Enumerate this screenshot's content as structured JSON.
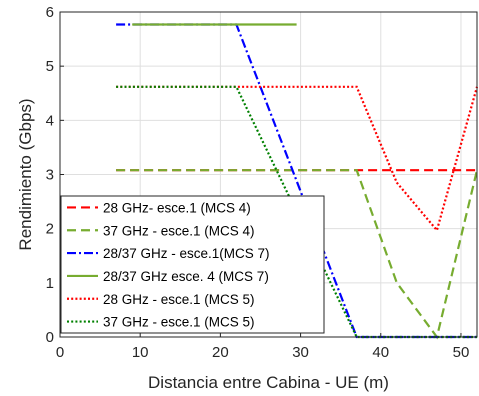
{
  "chart_data": {
    "type": "line",
    "title": "",
    "xlabel": "Distancia entre Cabina - UE (m)",
    "ylabel": "Rendimiento (Gbps)",
    "xlim": [
      0,
      52
    ],
    "ylim": [
      0,
      6
    ],
    "xticks": [
      0,
      10,
      20,
      30,
      40,
      50
    ],
    "yticks": [
      0,
      1,
      2,
      3,
      4,
      5,
      6
    ],
    "grid": true,
    "legend_position": "bottom-left",
    "series": [
      {
        "name": "28 GHz- esce.1 (MCS 4)",
        "color": "#ff0000",
        "dash": "dashed",
        "points": [
          [
            7,
            3.08
          ],
          [
            52,
            3.08
          ]
        ]
      },
      {
        "name": "37 GHz - esce.1 (MCS 4)",
        "color": "#77ac30",
        "dash": "dashed",
        "points": [
          [
            7,
            3.08
          ],
          [
            37,
            3.08
          ],
          [
            42,
            1.0
          ],
          [
            47,
            0.0
          ],
          [
            52,
            3.08
          ]
        ]
      },
      {
        "name": "28/37 GHz - esce.1(MCS 7)",
        "color": "#0000ff",
        "dash": "dashdot",
        "points": [
          [
            7,
            5.77
          ],
          [
            22,
            5.77
          ],
          [
            37,
            0.0
          ],
          [
            52,
            0.0
          ]
        ]
      },
      {
        "name": "28/37 GHz esce. 4 (MCS 7)",
        "color": "#77ac30",
        "dash": "solid",
        "points": [
          [
            9,
            5.77
          ],
          [
            29.5,
            5.77
          ]
        ]
      },
      {
        "name": "28 GHz - esce.1 (MCS 5)",
        "color": "#ff0000",
        "dash": "dotted",
        "points": [
          [
            7,
            4.62
          ],
          [
            37,
            4.62
          ],
          [
            42,
            2.85
          ],
          [
            47,
            1.97
          ],
          [
            52,
            4.62
          ]
        ]
      },
      {
        "name": "37 GHz - esce.1 (MCS 5)",
        "color": "#008000",
        "dash": "dotted",
        "points": [
          [
            7,
            4.62
          ],
          [
            22,
            4.62
          ],
          [
            37,
            0.0
          ],
          [
            52,
            0.0
          ]
        ]
      }
    ]
  }
}
